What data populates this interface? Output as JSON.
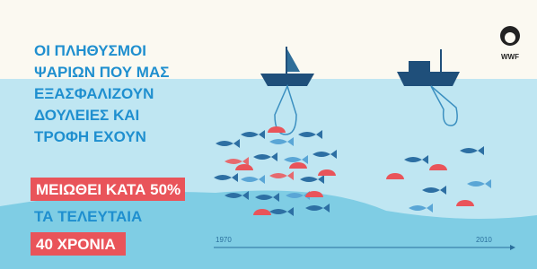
{
  "logo": {
    "text": "WWF"
  },
  "headline": {
    "lines": [
      "ΟΙ ΠΛΗΘΥΣΜΟΙ",
      "ΨΑΡΙΩΝ ΠΟΥ ΜΑΣ",
      "ΕΞΑΣΦΑΛΙΖΟΥΝ",
      "ΔΟΥΛΕΙΕΣ ΚΑΙ",
      "ΤΡΟΦΗ ΕΧΟΥΝ"
    ],
    "highlight": "ΜΕΙΩΘΕΙ ΚΑΤΑ 50%",
    "after": "ΤΑ ΤΕΛΕΥΤΑΙΑ",
    "highlight2": "40 ΧΡΟΝΙΑ"
  },
  "timeline": {
    "start": "1970",
    "end": "2010"
  }
}
